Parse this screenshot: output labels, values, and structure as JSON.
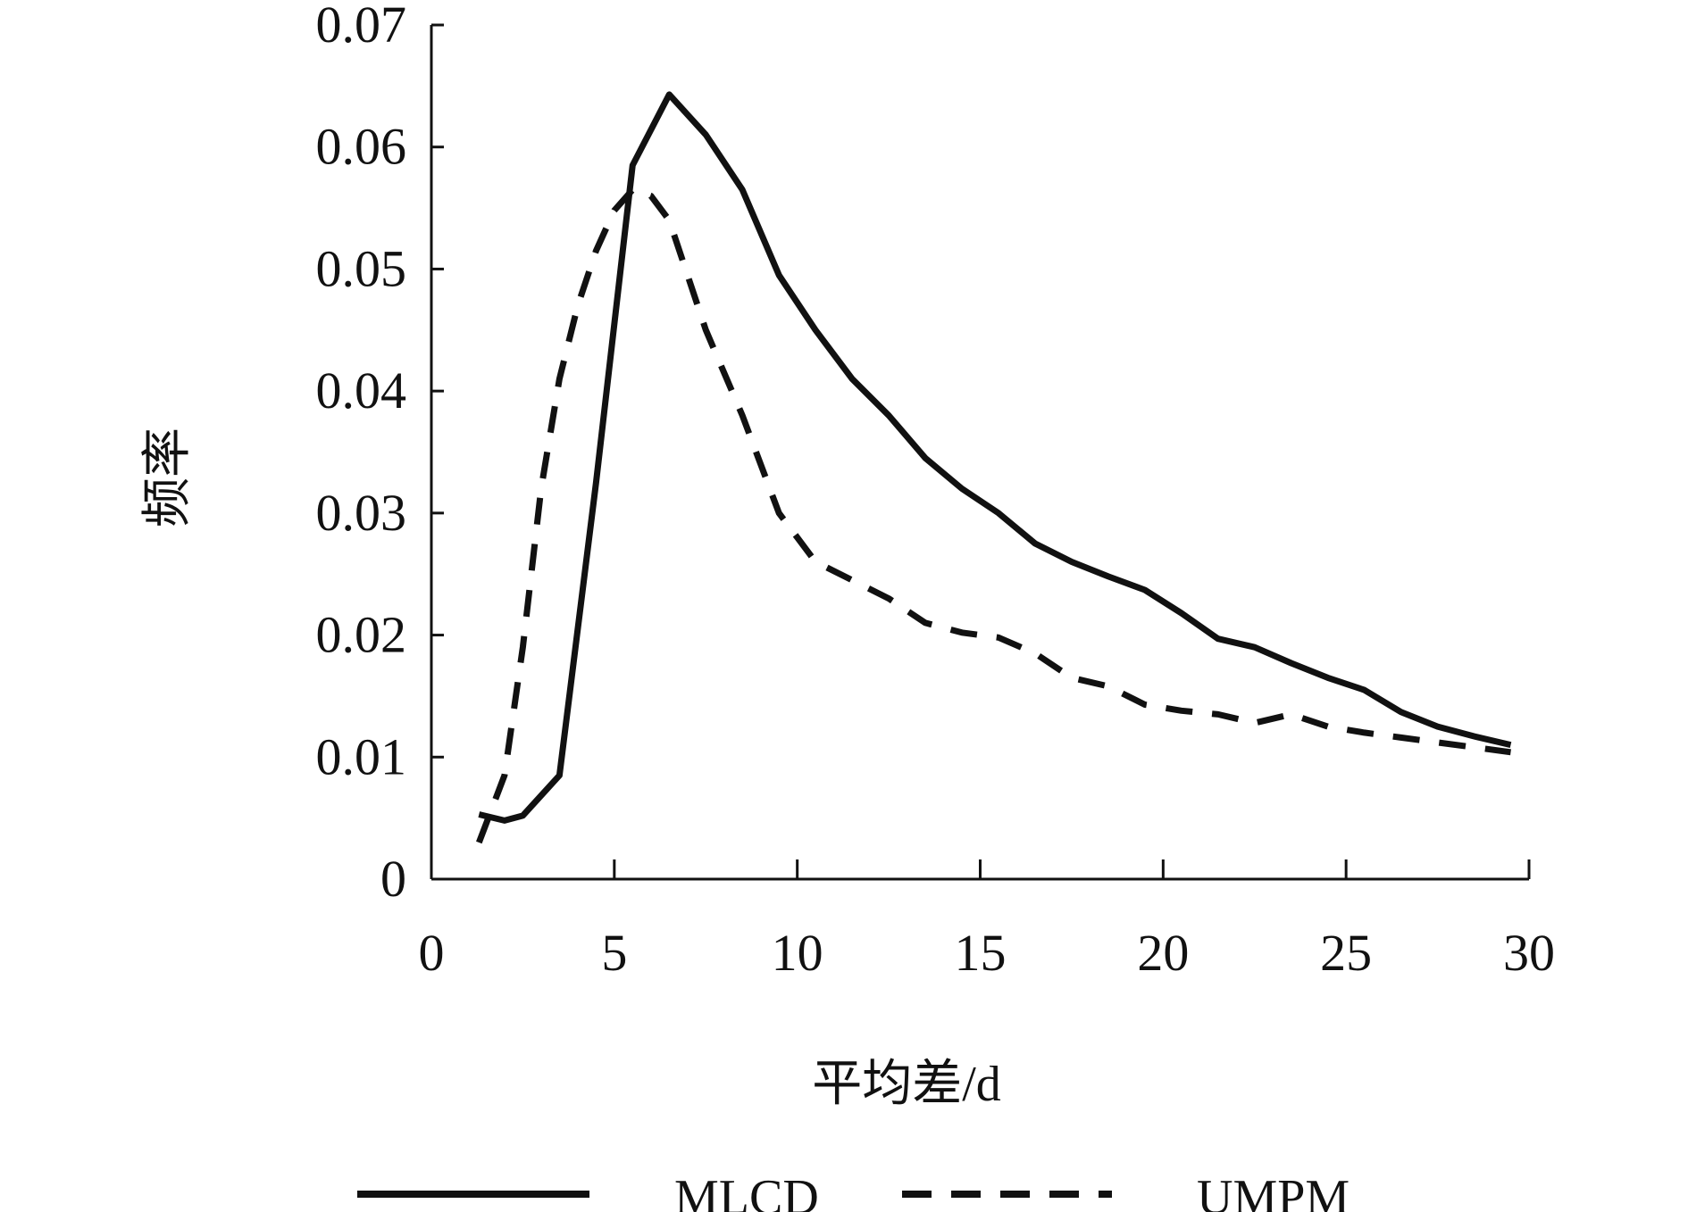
{
  "chart_data": {
    "type": "line",
    "title": "",
    "xlabel": "平均差/d",
    "ylabel": "频率",
    "xlim": [
      0,
      30
    ],
    "ylim": [
      0,
      0.07
    ],
    "x_ticks": [
      0,
      5,
      10,
      15,
      20,
      25,
      30
    ],
    "x_tick_labels": [
      "0",
      "5",
      "10",
      "15",
      "20",
      "25",
      "30"
    ],
    "y_ticks": [
      0,
      0.01,
      0.02,
      0.03,
      0.04,
      0.05,
      0.06,
      0.07
    ],
    "y_tick_labels": [
      "0",
      "0.01",
      "0.02",
      "0.03",
      "0.04",
      "0.05",
      "0.06",
      "0.07"
    ],
    "grid": false,
    "legend_position": "bottom",
    "series": [
      {
        "name": "MLCD",
        "style": "solid",
        "color": "#111111",
        "x": [
          1.3,
          2.0,
          2.5,
          3.5,
          4.5,
          5.5,
          6.5,
          7.5,
          8.5,
          9.5,
          10.5,
          11.5,
          12.5,
          13.5,
          14.5,
          15.5,
          16.5,
          17.5,
          18.5,
          19.5,
          20.5,
          21.5,
          22.5,
          23.5,
          24.5,
          25.5,
          26.5,
          27.5,
          28.5,
          29.5
        ],
        "y": [
          0.0053,
          0.0048,
          0.0052,
          0.0085,
          0.0325,
          0.0585,
          0.0643,
          0.061,
          0.0565,
          0.0495,
          0.045,
          0.041,
          0.038,
          0.0345,
          0.032,
          0.03,
          0.0275,
          0.026,
          0.0248,
          0.0237,
          0.0218,
          0.0197,
          0.019,
          0.0177,
          0.0165,
          0.0155,
          0.0137,
          0.0125,
          0.0117,
          0.011
        ]
      },
      {
        "name": "UMPM",
        "style": "dashed",
        "color": "#111111",
        "x": [
          1.3,
          2.0,
          2.5,
          3.0,
          3.5,
          4.0,
          4.5,
          5.0,
          5.5,
          6.0,
          6.5,
          7.5,
          8.5,
          9.5,
          10.5,
          11.5,
          12.5,
          13.5,
          14.5,
          15.5,
          16.5,
          17.5,
          18.5,
          19.5,
          20.5,
          21.5,
          22.5,
          23.5,
          24.5,
          25.5,
          26.5,
          27.5,
          28.5,
          29.5
        ],
        "y": [
          0.003,
          0.0085,
          0.019,
          0.032,
          0.041,
          0.047,
          0.0515,
          0.0548,
          0.0565,
          0.056,
          0.054,
          0.045,
          0.038,
          0.03,
          0.026,
          0.0245,
          0.023,
          0.021,
          0.0202,
          0.0198,
          0.0185,
          0.0165,
          0.0158,
          0.0143,
          0.0138,
          0.0135,
          0.0128,
          0.0135,
          0.0125,
          0.012,
          0.0116,
          0.0112,
          0.0108,
          0.0104
        ]
      }
    ]
  }
}
